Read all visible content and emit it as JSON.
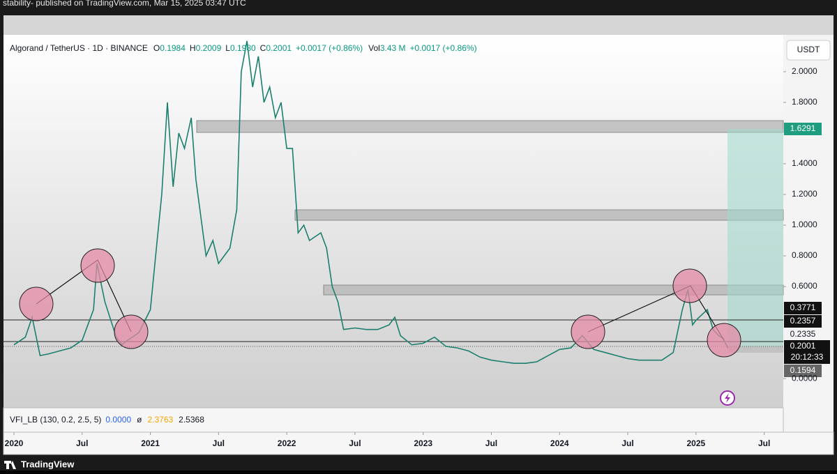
{
  "header": {
    "caption": "stability- published on TradingView.com, Mar 15, 2025 03:47 UTC"
  },
  "legend": {
    "symbol": "Algorand / TetherUS · 1D · BINANCE",
    "o_label": "O",
    "o": "0.1984",
    "h_label": "H",
    "h": "0.2009",
    "l_label": "L",
    "l": "0.1980",
    "c_label": "C",
    "c": "0.2001",
    "change": "+0.0017 (+0.86%)",
    "vol_label": "Vol",
    "vol": "3.43 M",
    "vol_change": "+0.0017 (+0.86%)"
  },
  "currency_button": "USDT",
  "price_labels": {
    "target": "1.6291",
    "level_1": "0.3771",
    "level_2": "0.2357",
    "level_3": "0.2335",
    "last": "0.2001",
    "countdown": "20:12:33",
    "stop": "0.1594"
  },
  "indicator": {
    "name": "VFI_LB (130, 0.2, 2.5, 5)",
    "v1": "0.0000",
    "sym": "ø",
    "v2": "2.3763",
    "v3": "2.5368"
  },
  "footer": {
    "brand": "TradingView"
  },
  "chart_data": {
    "type": "line",
    "color": "#1b7f6e",
    "x": [
      0,
      1,
      1.6,
      2.3,
      3,
      4,
      5,
      6,
      7,
      7.3,
      8,
      9,
      9.5,
      10,
      11,
      12,
      12.6,
      13,
      13.5,
      14,
      14.5,
      15,
      15.6,
      16,
      16.9,
      17.5,
      18,
      19,
      19.6,
      20,
      20.5,
      21,
      21.5,
      22,
      22.5,
      23,
      23.5,
      24,
      24.5,
      25,
      25.5,
      26,
      27,
      27.5,
      28,
      28.5,
      29,
      30,
      31,
      32,
      33,
      33.5,
      34,
      35,
      36,
      37,
      38,
      39,
      40,
      41,
      42,
      43,
      44,
      45,
      46,
      47,
      48,
      49,
      50,
      51,
      52,
      53,
      54,
      55,
      56,
      57,
      58,
      58.8,
      59.3,
      59.7,
      60,
      61,
      61.5,
      62,
      62.4,
      62.8
    ],
    "values": [
      0.22,
      0.27,
      0.4,
      0.15,
      0.16,
      0.18,
      0.2,
      0.25,
      0.45,
      0.75,
      0.5,
      0.27,
      0.22,
      0.25,
      0.3,
      0.45,
      0.9,
      1.2,
      1.8,
      1.25,
      1.6,
      1.5,
      1.7,
      1.3,
      0.8,
      0.9,
      0.75,
      0.85,
      1.1,
      2.0,
      2.2,
      1.9,
      2.1,
      1.8,
      1.9,
      1.7,
      1.8,
      1.5,
      1.5,
      0.95,
      1.0,
      0.9,
      0.95,
      0.85,
      0.6,
      0.5,
      0.32,
      0.33,
      0.32,
      0.32,
      0.35,
      0.4,
      0.28,
      0.22,
      0.23,
      0.27,
      0.21,
      0.2,
      0.18,
      0.14,
      0.12,
      0.11,
      0.1,
      0.1,
      0.11,
      0.15,
      0.19,
      0.2,
      0.28,
      0.19,
      0.17,
      0.15,
      0.13,
      0.12,
      0.12,
      0.12,
      0.17,
      0.45,
      0.58,
      0.35,
      0.38,
      0.45,
      0.32,
      0.28,
      0.26,
      0.2001
    ],
    "xlim": [
      -0.92,
      67.68
    ],
    "ylim": [
      -0.19,
      2.24
    ],
    "xticks": [
      {
        "value": 0,
        "label": "2020"
      },
      {
        "value": 6,
        "label": "Jul"
      },
      {
        "value": 12,
        "label": "2021"
      },
      {
        "value": 18,
        "label": "Jul"
      },
      {
        "value": 24,
        "label": "2022"
      },
      {
        "value": 30,
        "label": "Jul"
      },
      {
        "value": 36,
        "label": "2023"
      },
      {
        "value": 42,
        "label": "Jul"
      },
      {
        "value": 48,
        "label": "2024"
      },
      {
        "value": 54,
        "label": "Jul"
      },
      {
        "value": 60,
        "label": "2025"
      },
      {
        "value": 66,
        "label": "Jul"
      }
    ],
    "yticks": [
      {
        "value": 0,
        "label": "0.0000"
      },
      {
        "value": 0.6,
        "label": "0.6000"
      },
      {
        "value": 0.8,
        "label": "0.8000"
      },
      {
        "value": 1,
        "label": "1.0000"
      },
      {
        "value": 1.2,
        "label": "1.2000"
      },
      {
        "value": 1.4,
        "label": "1.4000"
      },
      {
        "value": 1.8,
        "label": "1.8000"
      },
      {
        "value": 2,
        "label": "2.0000"
      }
    ]
  }
}
